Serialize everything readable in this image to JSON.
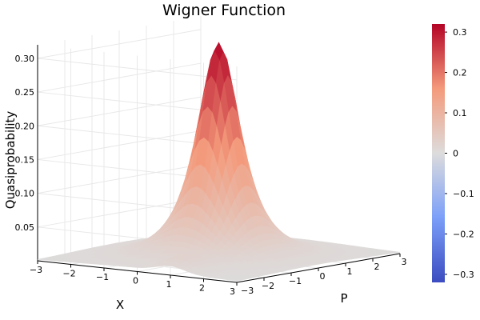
{
  "chart_data": {
    "type": "surface",
    "title": "Wigner Function",
    "xlabel": "X",
    "ylabel": "P",
    "zlabel": "Quasiprobability",
    "xlim": [
      -3,
      3
    ],
    "ylim": [
      -3,
      3
    ],
    "zlim": [
      0,
      0.32
    ],
    "x_ticks": [
      -3,
      -2,
      -1,
      0,
      1,
      2,
      3
    ],
    "y_ticks": [
      -3,
      -2,
      -1,
      0,
      1,
      2,
      3
    ],
    "z_ticks": [
      0.05,
      0.1,
      0.15,
      0.2,
      0.25,
      0.3
    ],
    "z_tick_labels": [
      "0.05",
      "0.10",
      "0.15",
      "0.20",
      "0.25",
      "0.30"
    ],
    "peak": {
      "x": 0,
      "p": 0,
      "value": 0.318
    },
    "colormap": "coolwarm",
    "colorbar": {
      "range": [
        -0.32,
        0.32
      ],
      "ticks": [
        -0.3,
        -0.2,
        -0.1,
        0,
        0.1,
        0.2,
        0.3
      ],
      "tick_labels": [
        "−0.3",
        "−0.2",
        "−0.1",
        "0",
        "0.1",
        "0.2",
        "0.3"
      ]
    },
    "grid": true,
    "legend": "none"
  }
}
